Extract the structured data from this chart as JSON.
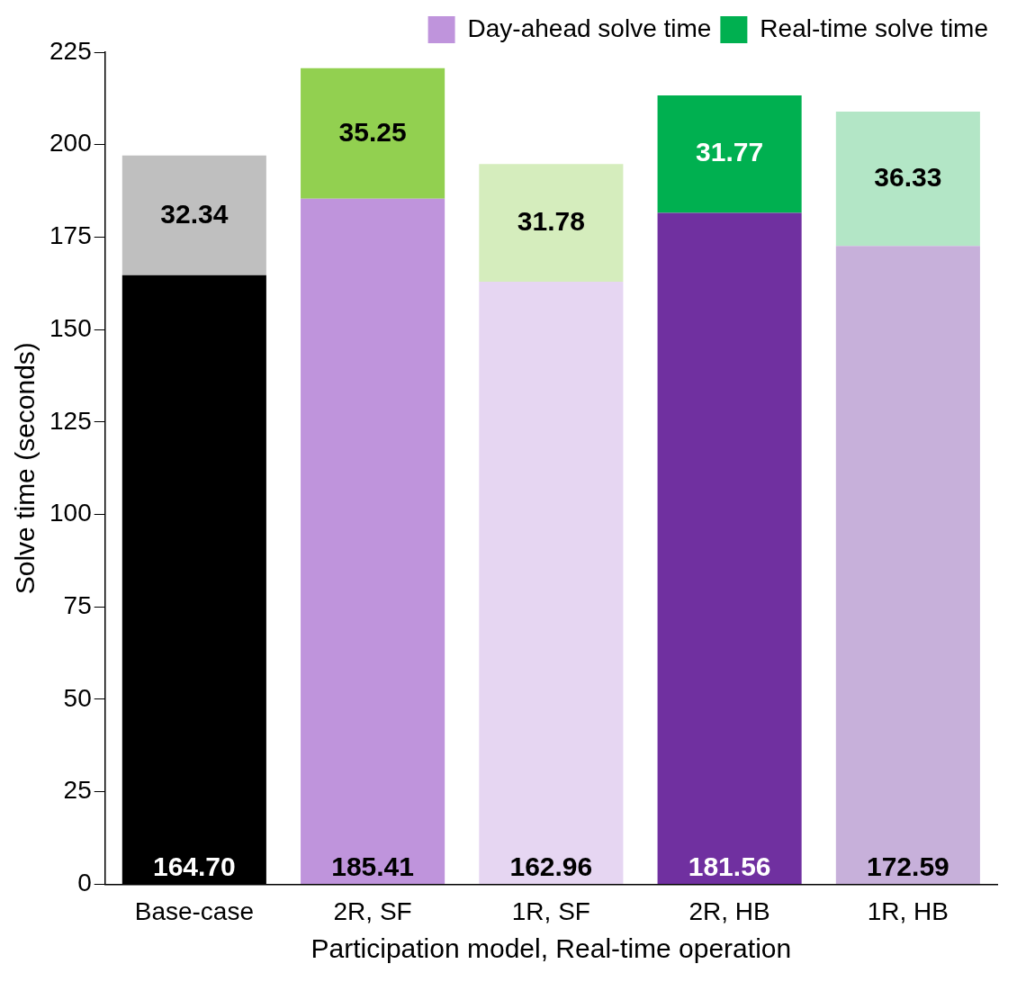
{
  "chart_data": {
    "type": "bar",
    "stacked": true,
    "xlabel": "Participation model, Real-time operation",
    "ylabel": "Solve time (seconds)",
    "categories": [
      "Base-case",
      "2R, SF",
      "1R, SF",
      "2R, HB",
      "1R, HB"
    ],
    "series": [
      {
        "name": "Day-ahead solve time",
        "color": "#bf94dc",
        "colors": [
          "#000000",
          "#bf94dc",
          "#e6d6f2",
          "#7030a0",
          "#c7b0da"
        ],
        "values": [
          164.7,
          185.41,
          162.96,
          181.56,
          172.59
        ],
        "value_labels": [
          "164.70",
          "185.41",
          "162.96",
          "181.56",
          "172.59"
        ]
      },
      {
        "name": "Real-time solve time",
        "color": "#00b050",
        "colors": [
          "#bfbfbf",
          "#92d050",
          "#d5edbd",
          "#00b050",
          "#b3e6c6"
        ],
        "values": [
          32.34,
          35.25,
          31.78,
          31.77,
          36.33
        ],
        "value_labels": [
          "32.34",
          "35.25",
          "31.78",
          "31.77",
          "36.33"
        ]
      }
    ],
    "ylim": [
      0,
      225
    ],
    "yticks": [
      0,
      25,
      50,
      75,
      100,
      125,
      150,
      175,
      200,
      225
    ],
    "grid": false,
    "legend": "top right"
  }
}
